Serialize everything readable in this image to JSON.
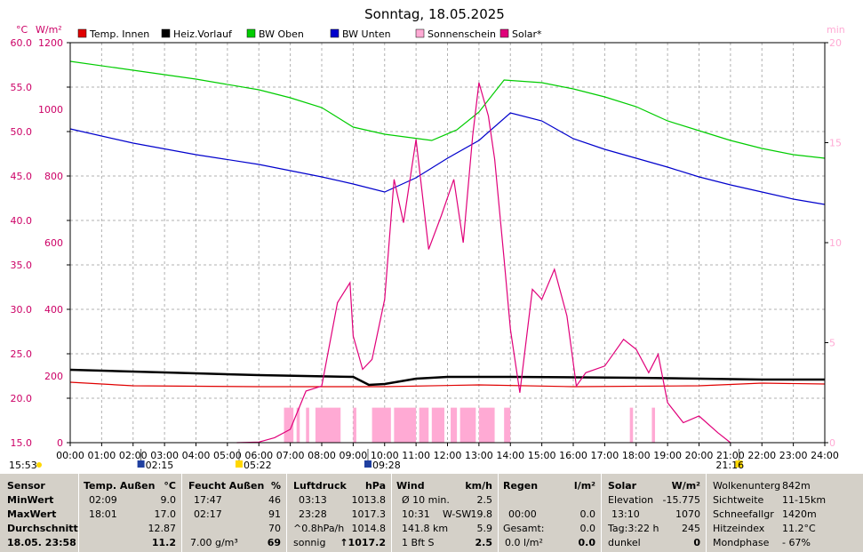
{
  "title": "Sonntag, 18.05.2025",
  "units": {
    "left1": "°C",
    "left2": "W/m²",
    "right": "min"
  },
  "legend": [
    {
      "name": "Temp. Innen",
      "color": "#e00000"
    },
    {
      "name": "Heiz.Vorlauf",
      "color": "#000000"
    },
    {
      "name": "BW Oben",
      "color": "#00cc00"
    },
    {
      "name": "BW Unten",
      "color": "#0000cc"
    },
    {
      "name": "Sonnenschein",
      "color": "#ffaad4"
    },
    {
      "name": "Solar*",
      "color": "#e0007a"
    }
  ],
  "chart_data": {
    "type": "line",
    "title": "Sonntag, 18.05.2025",
    "x_ticks": [
      "00:00",
      "01:00",
      "02:00",
      "03:00",
      "04:00",
      "05:00",
      "06:00",
      "07:00",
      "08:00",
      "09:00",
      "10:00",
      "11:00",
      "12:00",
      "13:00",
      "14:00",
      "15:00",
      "16:00",
      "17:00",
      "18:00",
      "19:00",
      "20:00",
      "21:00",
      "22:00",
      "23:00",
      "24:00"
    ],
    "y_left_temp": {
      "label": "°C",
      "ticks": [
        "15.0",
        "20.0",
        "25.0",
        "30.0",
        "35.0",
        "40.0",
        "45.0",
        "50.0",
        "55.0",
        "60.0"
      ],
      "range": [
        15,
        60
      ]
    },
    "y_left_solar": {
      "label": "W/m²",
      "ticks": [
        "0",
        "200",
        "400",
        "600",
        "800",
        "1000",
        "1200"
      ],
      "range": [
        0,
        1200
      ]
    },
    "y_right": {
      "label": "min",
      "ticks": [
        "0",
        "5",
        "10",
        "15",
        "20"
      ],
      "range": [
        0,
        20
      ]
    },
    "grid": true,
    "series": [
      {
        "name": "BW Oben",
        "axis": "temp",
        "color": "#00cc00",
        "points": [
          [
            0,
            57.9
          ],
          [
            2,
            56.9
          ],
          [
            4,
            55.9
          ],
          [
            6,
            54.7
          ],
          [
            7,
            53.8
          ],
          [
            8,
            52.7
          ],
          [
            9,
            50.5
          ],
          [
            10,
            49.7
          ],
          [
            11.5,
            49
          ],
          [
            12.3,
            50.2
          ],
          [
            13,
            52.2
          ],
          [
            13.8,
            55.8
          ],
          [
            15,
            55.5
          ],
          [
            16,
            54.8
          ],
          [
            17,
            53.9
          ],
          [
            18,
            52.8
          ],
          [
            19,
            51.2
          ],
          [
            20,
            50.1
          ],
          [
            21,
            49
          ],
          [
            22,
            48.1
          ],
          [
            23,
            47.4
          ],
          [
            24,
            47.0
          ]
        ]
      },
      {
        "name": "BW Unten",
        "axis": "temp",
        "color": "#0000cc",
        "points": [
          [
            0,
            50.3
          ],
          [
            2,
            48.7
          ],
          [
            4,
            47.4
          ],
          [
            6,
            46.3
          ],
          [
            8,
            44.9
          ],
          [
            9,
            44.1
          ],
          [
            10,
            43.2
          ],
          [
            11,
            44.8
          ],
          [
            12,
            47.0
          ],
          [
            13,
            49.0
          ],
          [
            14,
            52.1
          ],
          [
            15,
            51.2
          ],
          [
            16,
            49.2
          ],
          [
            17,
            48.0
          ],
          [
            18,
            47.0
          ],
          [
            19,
            46.0
          ],
          [
            20,
            44.9
          ],
          [
            21,
            44.0
          ],
          [
            22,
            43.2
          ],
          [
            23,
            42.4
          ],
          [
            24,
            41.8
          ]
        ]
      },
      {
        "name": "Heiz.Vorlauf",
        "axis": "temp",
        "color": "#000000",
        "points": [
          [
            0,
            23.2
          ],
          [
            3,
            22.9
          ],
          [
            6,
            22.6
          ],
          [
            9,
            22.4
          ],
          [
            9.5,
            21.5
          ],
          [
            10,
            21.6
          ],
          [
            11,
            22.2
          ],
          [
            12,
            22.4
          ],
          [
            14,
            22.4
          ],
          [
            18,
            22.3
          ],
          [
            22,
            22.1
          ],
          [
            24,
            22.1
          ]
        ]
      },
      {
        "name": "Temp. Innen",
        "axis": "temp",
        "color": "#e00000",
        "points": [
          [
            0,
            21.8
          ],
          [
            2,
            21.4
          ],
          [
            6,
            21.3
          ],
          [
            10,
            21.3
          ],
          [
            13,
            21.5
          ],
          [
            16,
            21.3
          ],
          [
            20,
            21.4
          ],
          [
            22,
            21.7
          ],
          [
            24,
            21.6
          ]
        ]
      },
      {
        "name": "Solar*",
        "axis": "solar",
        "color": "#e0007a",
        "points": [
          [
            5.3,
            0
          ],
          [
            6,
            2
          ],
          [
            6.5,
            15
          ],
          [
            7,
            40
          ],
          [
            7.5,
            155
          ],
          [
            8,
            170
          ],
          [
            8.5,
            420
          ],
          [
            8.9,
            480
          ],
          [
            9,
            320
          ],
          [
            9.3,
            220
          ],
          [
            9.6,
            250
          ],
          [
            10,
            430
          ],
          [
            10.3,
            790
          ],
          [
            10.6,
            660
          ],
          [
            11,
            910
          ],
          [
            11.4,
            580
          ],
          [
            11.8,
            680
          ],
          [
            12.2,
            790
          ],
          [
            12.5,
            600
          ],
          [
            12.8,
            920
          ],
          [
            13,
            1080
          ],
          [
            13.3,
            980
          ],
          [
            13.5,
            850
          ],
          [
            13.8,
            550
          ],
          [
            14,
            340
          ],
          [
            14.3,
            150
          ],
          [
            14.7,
            460
          ],
          [
            15,
            430
          ],
          [
            15.4,
            520
          ],
          [
            15.8,
            380
          ],
          [
            16.1,
            170
          ],
          [
            16.4,
            210
          ],
          [
            17,
            230
          ],
          [
            17.6,
            310
          ],
          [
            18,
            280
          ],
          [
            18.4,
            210
          ],
          [
            18.7,
            265
          ],
          [
            19,
            120
          ],
          [
            19.5,
            60
          ],
          [
            20,
            80
          ],
          [
            20.6,
            30
          ],
          [
            21,
            0
          ]
        ]
      },
      {
        "name": "Sonnenschein",
        "axis": "min",
        "color": "#ffaad4",
        "bars": [
          [
            6.8,
            7.1
          ],
          [
            7.2,
            7.3
          ],
          [
            7.5,
            7.6
          ],
          [
            7.8,
            8.6
          ],
          [
            9.0,
            9.1
          ],
          [
            9.6,
            10.2
          ],
          [
            10.3,
            11.0
          ],
          [
            11.1,
            11.4
          ],
          [
            11.5,
            11.9
          ],
          [
            12.1,
            12.3
          ],
          [
            12.4,
            12.9
          ],
          [
            13.0,
            13.5
          ],
          [
            13.8,
            14.0
          ],
          [
            17.8,
            17.9
          ],
          [
            18.5,
            18.6
          ]
        ],
        "level": 1.75
      }
    ]
  },
  "timebar": [
    {
      "label": "15:53",
      "h": -2.1
    },
    {
      "label": "02:15",
      "h": 2.25
    },
    {
      "label": "05:22",
      "h": 5.37
    },
    {
      "label": "09:28",
      "h": 9.47
    },
    {
      "label": "21:16",
      "h": 21.27
    }
  ],
  "stats": {
    "sensor": {
      "h": "Sensor",
      "r1": "MinWert",
      "r2": "MaxWert",
      "r3": "Durchschnitt",
      "r4": "18.05. 23:58"
    },
    "temp": {
      "h": "Temp. Außen",
      "u": "°C",
      "r1a": "02:09",
      "r1b": "9.0",
      "r2a": "18:01",
      "r2b": "17.0",
      "r3b": "12.87",
      "r4b": "11.2"
    },
    "feucht": {
      "h": "Feucht Außen",
      "u": "%",
      "r1a": "17:47",
      "r1b": "46",
      "r2a": "02:17",
      "r2b": "91",
      "r3b": "70",
      "r4a": "7.00 g/m³",
      "r4b": "69"
    },
    "druck": {
      "h": "Luftdruck",
      "u": "hPa",
      "r1a": "03:13",
      "r1b": "1013.8",
      "r2a": "23:28",
      "r2b": "1017.3",
      "r3a": "^0.8hPa/h",
      "r3b": "1014.8",
      "r4a": "sonnig",
      "r4b": "↑1017.2"
    },
    "wind": {
      "h": "Wind",
      "u": "km/h",
      "r1a": "Ø 10 min.",
      "r1b": "2.5",
      "r2a": "10:31",
      "r2m": "W-SW",
      "r2b": "19.8",
      "r3a": "141.8 km",
      "r3b": "5.9",
      "r4a": "1 Bft S",
      "r4b": "2.5"
    },
    "regen": {
      "h": "Regen",
      "u": "l/m²",
      "r2a": "00:00",
      "r2b": "0.0",
      "r3a": "Gesamt:",
      "r3b": "0.0",
      "r4a": "0.0 l/m²",
      "r4b": "0.0"
    },
    "solar": {
      "h": "Solar",
      "u": "W/m²",
      "r1a": "Elevation",
      "r1b": "-15.775",
      "r2a": "13:10",
      "r2b": "1070",
      "r3a": "Tag:3:22 h",
      "r3b": "245",
      "r4a": "dunkel",
      "r4b": "0"
    },
    "extra": {
      "r1a": "Wolkenunterg",
      "r1b": "842m",
      "r2a": "Sichtweite",
      "r2b": "11-15km",
      "r3a": "Schneefallgr",
      "r3b": "1420m",
      "r4a": "Hitzeindex",
      "r4b": "11.2°C",
      "r5a": "Mondphase",
      "r5b": "- 67%"
    }
  }
}
